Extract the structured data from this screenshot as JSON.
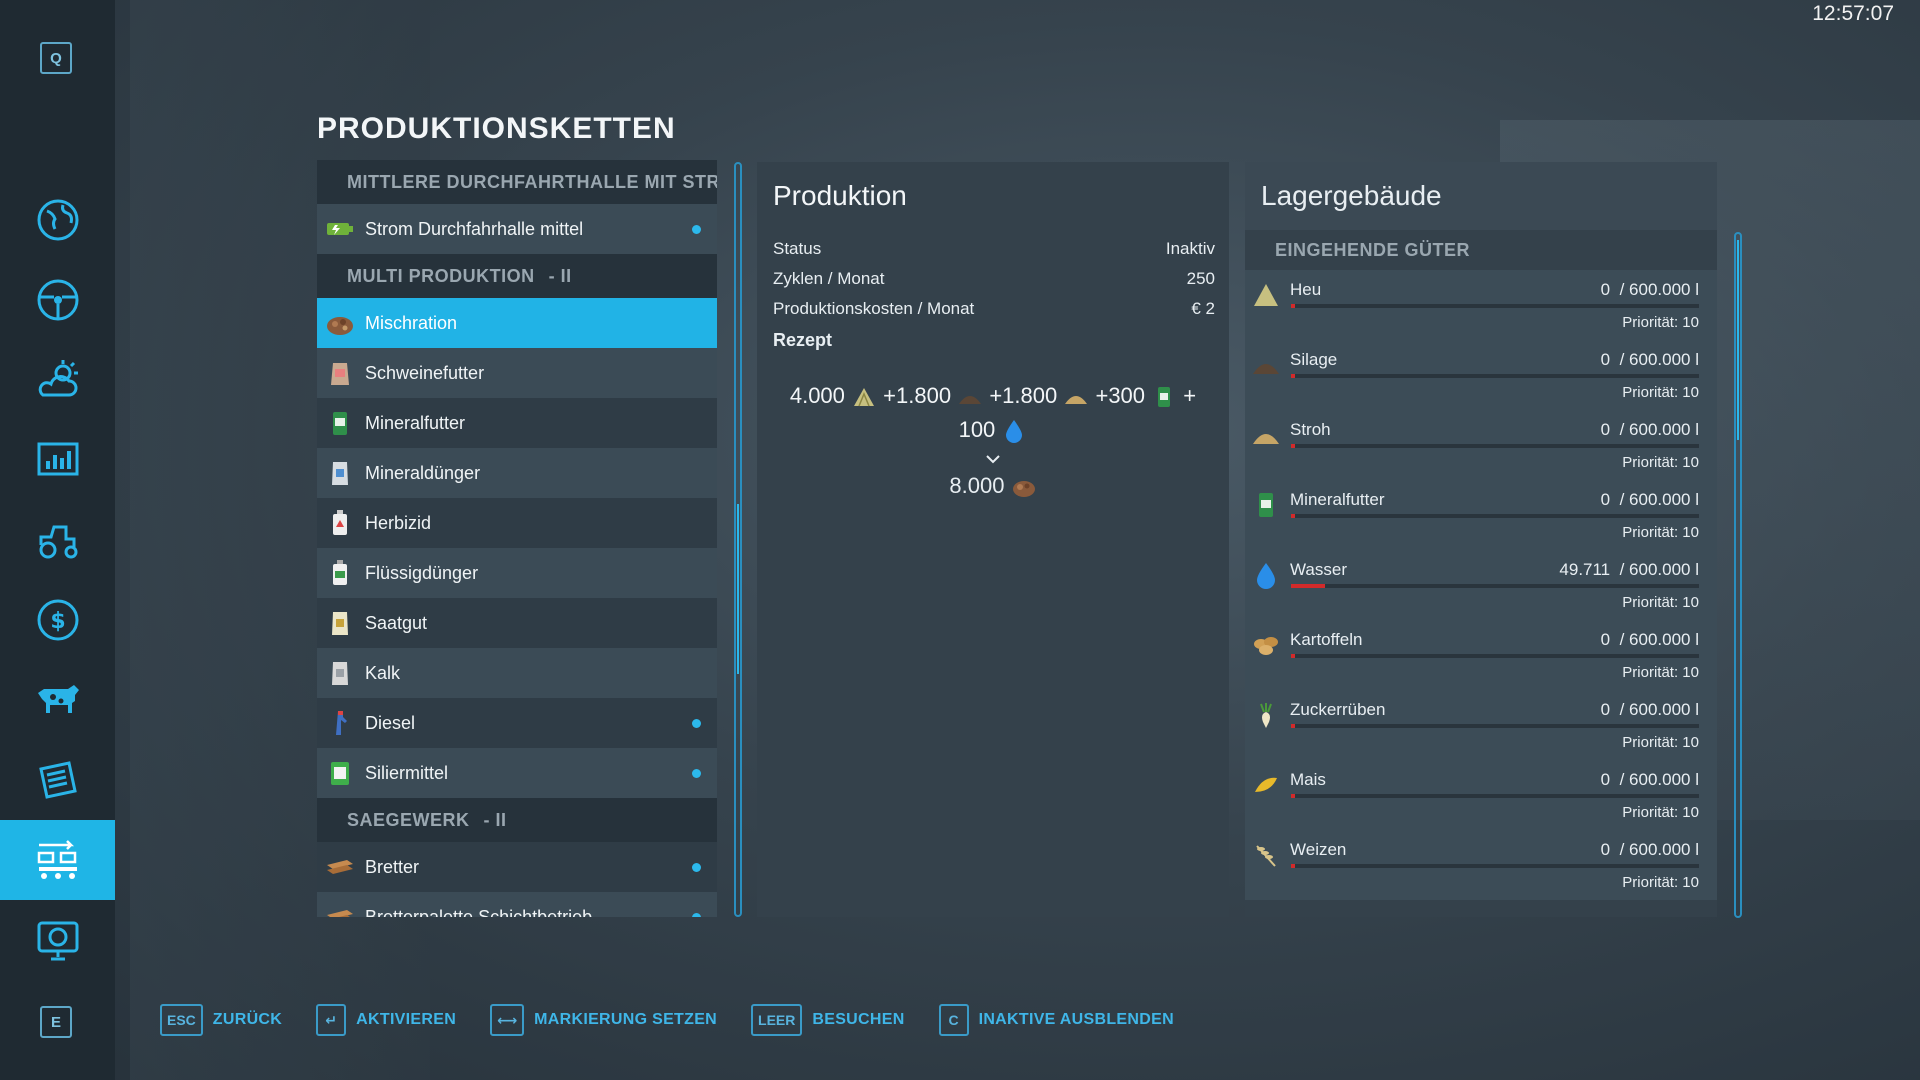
{
  "clock": "12:57:07",
  "sidebar": {
    "top_key": "Q",
    "bottom_key": "E",
    "icons": [
      "map-globe-icon",
      "steering-wheel-icon",
      "weather-icon",
      "statistics-icon",
      "tractor-icon",
      "dollar-icon",
      "cow-icon",
      "contracts-icon",
      "production-chains-icon",
      "help-icon"
    ],
    "active": "production-chains-icon"
  },
  "page_title": "PRODUKTIONSKETTEN",
  "chain_list": {
    "groups": [
      {
        "title": "MITTLERE DURCHFAHRTHALLE MIT STR...",
        "suffix": "",
        "items": [
          {
            "label": "Strom Durchfahrhalle mittel",
            "icon": "battery-icon",
            "dot": true,
            "style": "alt"
          }
        ]
      },
      {
        "title": "MULTI PRODUKTION",
        "suffix": "- II",
        "items": [
          {
            "label": "Mischration",
            "icon": "mixed-ration-icon",
            "dot": false,
            "style": "selected"
          },
          {
            "label": "Schweinefutter",
            "icon": "pig-food-icon",
            "dot": false,
            "style": "alt"
          },
          {
            "label": "Mineralfutter",
            "icon": "mineral-feed-icon",
            "dot": false,
            "style": "plain"
          },
          {
            "label": "Mineraldünger",
            "icon": "fertilizer-bag-icon",
            "dot": false,
            "style": "alt"
          },
          {
            "label": "Herbizid",
            "icon": "herbicide-icon",
            "dot": false,
            "style": "plain"
          },
          {
            "label": "Flüssigdünger",
            "icon": "liquid-fertilizer-icon",
            "dot": false,
            "style": "alt"
          },
          {
            "label": "Saatgut",
            "icon": "seed-bag-icon",
            "dot": false,
            "style": "plain"
          },
          {
            "label": "Kalk",
            "icon": "lime-bag-icon",
            "dot": false,
            "style": "alt"
          },
          {
            "label": "Diesel",
            "icon": "fuel-nozzle-icon",
            "dot": true,
            "style": "plain"
          },
          {
            "label": "Siliermittel",
            "icon": "silage-additive-icon",
            "dot": true,
            "style": "alt"
          }
        ]
      },
      {
        "title": "SAEGEWERK",
        "suffix": "- II",
        "items": [
          {
            "label": "Bretter",
            "icon": "planks-icon",
            "dot": true,
            "style": "plain"
          },
          {
            "label": "Bretterpalette Schichtbetrieb",
            "icon": "planks-icon",
            "dot": true,
            "style": "alt"
          }
        ]
      }
    ]
  },
  "production": {
    "title": "Produktion",
    "rows": [
      {
        "key": "Status",
        "value": "Inaktiv"
      },
      {
        "key": "Zyklen / Monat",
        "value": "250"
      },
      {
        "key": "Produktionskosten / Monat",
        "value": "€ 2"
      }
    ],
    "recipe_label": "Rezept",
    "inputs": [
      {
        "amount": "4.000",
        "icon": "hay-icon"
      },
      {
        "amount": "+1.800",
        "icon": "silage-icon"
      },
      {
        "amount": "+1.800",
        "icon": "straw-icon"
      },
      {
        "amount": "+300",
        "icon": "mineral-feed-icon"
      },
      {
        "amount": "+",
        "icon": ""
      },
      {
        "amount": "100",
        "icon": "water-drop-icon"
      }
    ],
    "output": {
      "amount": "8.000",
      "icon": "mixed-ration-icon"
    }
  },
  "storage": {
    "title": "Lagergebäude",
    "subtitle": "EINGEHENDE GÜTER",
    "capacity_text": "/ 600.000 l",
    "priority_text": "Priorität: 10",
    "items": [
      {
        "name": "Heu",
        "amount": "0",
        "fill": 0.004,
        "icon": "hay-icon"
      },
      {
        "name": "Silage",
        "amount": "0",
        "fill": 0.004,
        "icon": "silage-icon"
      },
      {
        "name": "Stroh",
        "amount": "0",
        "fill": 0.004,
        "icon": "straw-icon"
      },
      {
        "name": "Mineralfutter",
        "amount": "0",
        "fill": 0.004,
        "icon": "mineral-feed-icon"
      },
      {
        "name": "Wasser",
        "amount": "49.711",
        "fill": 0.083,
        "icon": "water-drop-icon"
      },
      {
        "name": "Kartoffeln",
        "amount": "0",
        "fill": 0.004,
        "icon": "potato-icon"
      },
      {
        "name": "Zuckerrüben",
        "amount": "0",
        "fill": 0.004,
        "icon": "sugarbeet-icon"
      },
      {
        "name": "Mais",
        "amount": "0",
        "fill": 0.004,
        "icon": "corn-icon"
      },
      {
        "name": "Weizen",
        "amount": "0",
        "fill": 0.004,
        "icon": "wheat-icon"
      }
    ]
  },
  "bottom_bar": [
    {
      "key": "ESC",
      "label": "ZURÜCK",
      "name": "back-button"
    },
    {
      "key": "↵",
      "label": "AKTIVIEREN",
      "name": "activate-button"
    },
    {
      "key": "⟷",
      "label": "MARKIERUNG SETZEN",
      "name": "set-marker-button"
    },
    {
      "key": "LEER",
      "label": "BESUCHEN",
      "name": "visit-button"
    },
    {
      "key": "C",
      "label": "INAKTIVE AUSBLENDEN",
      "name": "hide-inactive-button"
    }
  ],
  "colors": {
    "accent": "#21b3e6",
    "panel": "#34414b",
    "sidebar": "#1f2a32",
    "fill_red": "#d32a2a"
  }
}
